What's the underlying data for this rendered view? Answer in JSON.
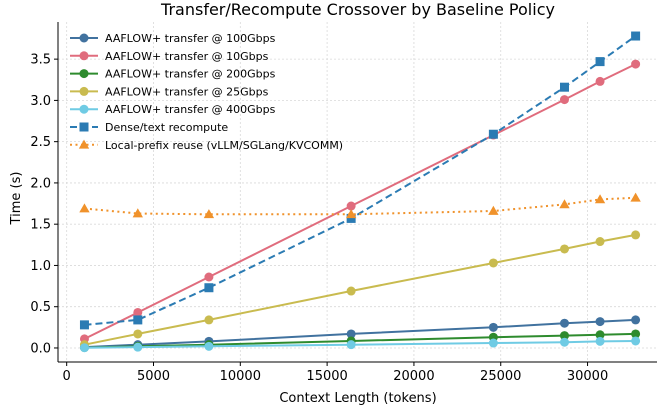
{
  "chart_data": {
    "type": "line",
    "title": "Transfer/Recompute Crossover by Baseline Policy",
    "xlabel": "Context Length (tokens)",
    "ylabel": "Time (s)",
    "xlim": [
      -500,
      34000
    ],
    "ylim": [
      -0.17,
      3.95
    ],
    "xticks": [
      0,
      5000,
      10000,
      15000,
      20000,
      25000,
      30000
    ],
    "yticks": [
      0.0,
      0.5,
      1.0,
      1.5,
      2.0,
      2.5,
      3.0,
      3.5
    ],
    "xtick_labels": [
      "0",
      "5000",
      "10000",
      "15000",
      "20000",
      "25000",
      "30000"
    ],
    "ytick_labels": [
      "0.0",
      "0.5",
      "1.0",
      "1.5",
      "2.0",
      "2.5",
      "3.0",
      "3.5"
    ],
    "grid": true,
    "legend_position": "upper-left",
    "x": [
      1024,
      4096,
      8192,
      16384,
      24576,
      28672,
      30720,
      32768
    ],
    "series": [
      {
        "name": "AAFLOW+ transfer @ 100Gbps",
        "color": "#41729f",
        "marker": "circle",
        "linestyle": "solid",
        "values": [
          0.01,
          0.04,
          0.08,
          0.17,
          0.25,
          0.3,
          0.32,
          0.34
        ]
      },
      {
        "name": "AAFLOW+ transfer @ 10Gbps",
        "color": "#e06c7d",
        "marker": "circle",
        "linestyle": "solid",
        "values": [
          0.11,
          0.43,
          0.86,
          1.72,
          2.58,
          3.01,
          3.23,
          3.44
        ]
      },
      {
        "name": "AAFLOW+ transfer @ 200Gbps",
        "color": "#2e8b2e",
        "marker": "circle",
        "linestyle": "solid",
        "values": [
          0.005,
          0.02,
          0.04,
          0.085,
          0.13,
          0.15,
          0.16,
          0.17
        ]
      },
      {
        "name": "AAFLOW+ transfer @ 25Gbps",
        "color": "#c9bb4f",
        "marker": "circle",
        "linestyle": "solid",
        "values": [
          0.04,
          0.17,
          0.34,
          0.69,
          1.03,
          1.2,
          1.29,
          1.37
        ]
      },
      {
        "name": "AAFLOW+ transfer @ 400Gbps",
        "color": "#6fcbe4",
        "marker": "circle",
        "linestyle": "solid",
        "values": [
          0.003,
          0.01,
          0.02,
          0.04,
          0.06,
          0.07,
          0.08,
          0.085
        ]
      },
      {
        "name": "Dense/text recompute",
        "color": "#2b7bb3",
        "marker": "square",
        "linestyle": "dashed",
        "values": [
          0.28,
          0.34,
          0.73,
          1.57,
          2.59,
          3.16,
          3.47,
          3.78
        ]
      },
      {
        "name": "Local-prefix reuse (vLLM/SGLang/KVCOMM)",
        "color": "#f0922b",
        "marker": "triangle",
        "linestyle": "dotted",
        "values": [
          1.69,
          1.63,
          1.62,
          1.62,
          1.66,
          1.74,
          1.8,
          1.82
        ]
      }
    ]
  }
}
